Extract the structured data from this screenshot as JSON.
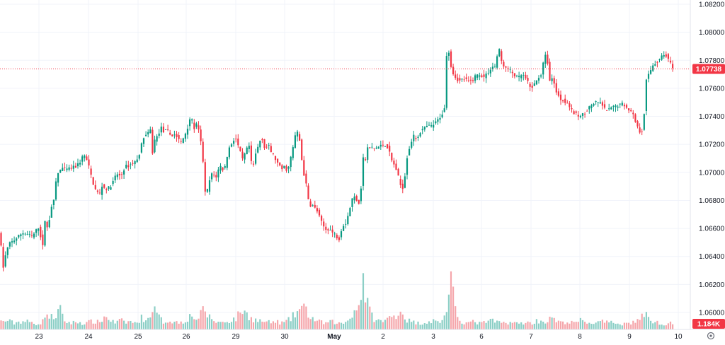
{
  "chart_data": {
    "type": "candlestick",
    "title": "",
    "price_axis": {
      "ylim": [
        1.0588,
        1.0822
      ],
      "tick_labels": [
        "1.08200",
        "1.08000",
        "1.07800",
        "1.07600",
        "1.07400",
        "1.07200",
        "1.07000",
        "1.06800",
        "1.06600",
        "1.06400",
        "1.06200",
        "1.06000"
      ],
      "tick_values": [
        1.082,
        1.08,
        1.078,
        1.076,
        1.074,
        1.072,
        1.07,
        1.068,
        1.066,
        1.064,
        1.062,
        1.06
      ]
    },
    "time_axis": {
      "tick_labels": [
        "23",
        "24",
        "25",
        "26",
        "29",
        "30",
        "May",
        "2",
        "3",
        "6",
        "7",
        "8",
        "9",
        "10"
      ],
      "bold_label": "May"
    },
    "current_price": {
      "value": 1.07738,
      "label": "1.07738",
      "color": "#f23645"
    },
    "volume_badge": {
      "label": "1.184K",
      "color": "#f23645"
    },
    "grid": true,
    "colors": {
      "up": "#089981",
      "down": "#f23645",
      "up_volume": "#8ccfc6",
      "down_volume": "#f5a6ab"
    },
    "series": [
      {
        "name": "price",
        "anchors": [
          [
            0,
            1.0658
          ],
          [
            3,
            1.0647
          ],
          [
            6,
            1.0632
          ],
          [
            9,
            1.064
          ],
          [
            14,
            1.0649
          ],
          [
            20,
            1.0651
          ],
          [
            27,
            1.0654
          ],
          [
            33,
            1.0657
          ],
          [
            40,
            1.0656
          ],
          [
            47,
            1.0654
          ],
          [
            52,
            1.0658
          ],
          [
            56,
            1.0661
          ],
          [
            60,
            1.0652
          ],
          [
            62,
            1.0647
          ],
          [
            65,
            1.0666
          ],
          [
            69,
            1.0659
          ],
          [
            74,
            1.0676
          ],
          [
            79,
            1.0681
          ],
          [
            81,
            1.0697
          ],
          [
            88,
            1.0703
          ],
          [
            95,
            1.0702
          ],
          [
            102,
            1.0703
          ],
          [
            108,
            1.0704
          ],
          [
            114,
            1.0707
          ],
          [
            120,
            1.0713
          ],
          [
            126,
            1.0706
          ],
          [
            132,
            1.0694
          ],
          [
            136,
            1.0688
          ],
          [
            142,
            1.0684
          ],
          [
            146,
            1.0691
          ],
          [
            150,
            1.0688
          ],
          [
            156,
            1.0689
          ],
          [
            161,
            1.0693
          ],
          [
            166,
            1.0699
          ],
          [
            172,
            1.0697
          ],
          [
            178,
            1.0704
          ],
          [
            184,
            1.0705
          ],
          [
            190,
            1.0707
          ],
          [
            196,
            1.0709
          ],
          [
            201,
            1.0719
          ],
          [
            205,
            1.0726
          ],
          [
            210,
            1.0727
          ],
          [
            215,
            1.0731
          ],
          [
            218,
            1.0705
          ],
          [
            220,
            1.0723
          ],
          [
            224,
            1.0726
          ],
          [
            229,
            1.0732
          ],
          [
            233,
            1.0729
          ],
          [
            238,
            1.073
          ],
          [
            243,
            1.0726
          ],
          [
            248,
            1.0727
          ],
          [
            252,
            1.0725
          ],
          [
            257,
            1.0721
          ],
          [
            262,
            1.0726
          ],
          [
            267,
            1.0733
          ],
          [
            271,
            1.0741
          ],
          [
            275,
            1.0731
          ],
          [
            280,
            1.0735
          ],
          [
            285,
            1.0722
          ],
          [
            289,
            1.0705
          ],
          [
            292,
            1.068
          ],
          [
            296,
            1.0692
          ],
          [
            301,
            1.0699
          ],
          [
            307,
            1.0697
          ],
          [
            312,
            1.0705
          ],
          [
            318,
            1.0701
          ],
          [
            324,
            1.0716
          ],
          [
            330,
            1.0722
          ],
          [
            334,
            1.0725
          ],
          [
            339,
            1.0717
          ],
          [
            344,
            1.0709
          ],
          [
            349,
            1.0715
          ],
          [
            353,
            1.072
          ],
          [
            358,
            1.0701
          ],
          [
            362,
            1.0712
          ],
          [
            367,
            1.072
          ],
          [
            371,
            1.0726
          ],
          [
            376,
            1.0716
          ],
          [
            380,
            1.072
          ],
          [
            384,
            1.0715
          ],
          [
            389,
            1.0711
          ],
          [
            394,
            1.0706
          ],
          [
            399,
            1.0702
          ],
          [
            403,
            1.0704
          ],
          [
            408,
            1.0701
          ],
          [
            412,
            1.071
          ],
          [
            416,
            1.0719
          ],
          [
            420,
            1.0731
          ],
          [
            425,
            1.0722
          ],
          [
            429,
            1.0703
          ],
          [
            434,
            1.0691
          ],
          [
            438,
            1.0677
          ],
          [
            444,
            1.0676
          ],
          [
            450,
            1.0672
          ],
          [
            455,
            1.0665
          ],
          [
            461,
            1.0659
          ],
          [
            466,
            1.066
          ],
          [
            471,
            1.0657
          ],
          [
            476,
            1.0655
          ],
          [
            480,
            1.0652
          ],
          [
            485,
            1.0662
          ],
          [
            490,
            1.0664
          ],
          [
            495,
            1.0673
          ],
          [
            500,
            1.0683
          ],
          [
            505,
            1.0681
          ],
          [
            510,
            1.0677
          ],
          [
            514,
            1.0711
          ],
          [
            517,
            1.0707
          ],
          [
            520,
            1.0717
          ],
          [
            525,
            1.0718
          ],
          [
            530,
            1.0717
          ],
          [
            535,
            1.0718
          ],
          [
            540,
            1.0719
          ],
          [
            545,
            1.072
          ],
          [
            550,
            1.0717
          ],
          [
            555,
            1.0708
          ],
          [
            560,
            1.0704
          ],
          [
            565,
            1.0695
          ],
          [
            569,
            1.0688
          ],
          [
            572,
            1.0691
          ],
          [
            576,
            1.071
          ],
          [
            580,
            1.0718
          ],
          [
            585,
            1.0726
          ],
          [
            590,
            1.0724
          ],
          [
            595,
            1.0729
          ],
          [
            600,
            1.0731
          ],
          [
            605,
            1.0733
          ],
          [
            611,
            1.0733
          ],
          [
            616,
            1.0735
          ],
          [
            621,
            1.0738
          ],
          [
            626,
            1.0742
          ],
          [
            630,
            1.0746
          ],
          [
            633,
            1.0795
          ],
          [
            636,
            1.0784
          ],
          [
            640,
            1.0772
          ],
          [
            645,
            1.0768
          ],
          [
            650,
            1.0765
          ],
          [
            656,
            1.0767
          ],
          [
            662,
            1.0765
          ],
          [
            668,
            1.0765
          ],
          [
            673,
            1.0769
          ],
          [
            679,
            1.077
          ],
          [
            685,
            1.0768
          ],
          [
            690,
            1.0771
          ],
          [
            696,
            1.0775
          ],
          [
            701,
            1.0776
          ],
          [
            706,
            1.0789
          ],
          [
            710,
            1.0779
          ],
          [
            716,
            1.0774
          ],
          [
            722,
            1.0773
          ],
          [
            727,
            1.077
          ],
          [
            733,
            1.0767
          ],
          [
            739,
            1.077
          ],
          [
            745,
            1.0766
          ],
          [
            751,
            1.076
          ],
          [
            757,
            1.0763
          ],
          [
            762,
            1.0768
          ],
          [
            766,
            1.077
          ],
          [
            770,
            1.0781
          ],
          [
            774,
            1.0785
          ],
          [
            777,
            1.0765
          ],
          [
            783,
            1.0767
          ],
          [
            788,
            1.0756
          ],
          [
            794,
            1.0752
          ],
          [
            799,
            1.0751
          ],
          [
            804,
            1.0749
          ],
          [
            810,
            1.0743
          ],
          [
            816,
            1.0741
          ],
          [
            822,
            1.074
          ],
          [
            828,
            1.0743
          ],
          [
            833,
            1.0746
          ],
          [
            839,
            1.0749
          ],
          [
            845,
            1.075
          ],
          [
            851,
            1.0749
          ],
          [
            857,
            1.0744
          ],
          [
            863,
            1.0745
          ],
          [
            869,
            1.0747
          ],
          [
            874,
            1.0748
          ],
          [
            880,
            1.0749
          ],
          [
            886,
            1.0747
          ],
          [
            892,
            1.0744
          ],
          [
            897,
            1.074
          ],
          [
            902,
            1.0732
          ],
          [
            907,
            1.0728
          ],
          [
            910,
            1.0732
          ],
          [
            912,
            1.0748
          ],
          [
            914,
            1.0765
          ],
          [
            918,
            1.077
          ],
          [
            924,
            1.0777
          ],
          [
            930,
            1.0779
          ],
          [
            936,
            1.0783
          ],
          [
            942,
            1.0784
          ],
          [
            947,
            1.0779
          ],
          [
            952,
            1.0774
          ]
        ]
      },
      {
        "name": "volume",
        "anchors": [
          [
            0,
            12
          ],
          [
            10,
            14
          ],
          [
            20,
            10
          ],
          [
            30,
            13
          ],
          [
            40,
            12
          ],
          [
            50,
            9
          ],
          [
            60,
            11
          ],
          [
            64,
            28
          ],
          [
            70,
            18
          ],
          [
            80,
            22
          ],
          [
            84,
            34
          ],
          [
            90,
            14
          ],
          [
            100,
            10
          ],
          [
            110,
            12
          ],
          [
            120,
            9
          ],
          [
            130,
            13
          ],
          [
            140,
            11
          ],
          [
            148,
            20
          ],
          [
            155,
            16
          ],
          [
            162,
            10
          ],
          [
            170,
            14
          ],
          [
            178,
            11
          ],
          [
            185,
            13
          ],
          [
            190,
            9
          ],
          [
            200,
            18
          ],
          [
            210,
            15
          ],
          [
            214,
            36
          ],
          [
            220,
            26
          ],
          [
            230,
            12
          ],
          [
            240,
            14
          ],
          [
            250,
            11
          ],
          [
            260,
            13
          ],
          [
            270,
            22
          ],
          [
            280,
            16
          ],
          [
            288,
            32
          ],
          [
            295,
            20
          ],
          [
            305,
            12
          ],
          [
            315,
            11
          ],
          [
            325,
            14
          ],
          [
            335,
            18
          ],
          [
            340,
            32
          ],
          [
            350,
            22
          ],
          [
            360,
            15
          ],
          [
            370,
            13
          ],
          [
            380,
            11
          ],
          [
            390,
            12
          ],
          [
            400,
            10
          ],
          [
            410,
            16
          ],
          [
            420,
            28
          ],
          [
            426,
            34
          ],
          [
            432,
            30
          ],
          [
            440,
            18
          ],
          [
            450,
            12
          ],
          [
            460,
            10
          ],
          [
            470,
            12
          ],
          [
            480,
            9
          ],
          [
            490,
            12
          ],
          [
            496,
            24
          ],
          [
            502,
            30
          ],
          [
            508,
            40
          ],
          [
            512,
            86
          ],
          [
            516,
            56
          ],
          [
            522,
            28
          ],
          [
            530,
            15
          ],
          [
            540,
            12
          ],
          [
            550,
            18
          ],
          [
            560,
            24
          ],
          [
            566,
            30
          ],
          [
            572,
            18
          ],
          [
            580,
            12
          ],
          [
            590,
            10
          ],
          [
            600,
            11
          ],
          [
            610,
            14
          ],
          [
            620,
            11
          ],
          [
            628,
            20
          ],
          [
            634,
            52
          ],
          [
            638,
            76
          ],
          [
            642,
            30
          ],
          [
            650,
            14
          ],
          [
            660,
            10
          ],
          [
            670,
            12
          ],
          [
            680,
            9
          ],
          [
            690,
            14
          ],
          [
            700,
            12
          ],
          [
            710,
            10
          ],
          [
            720,
            12
          ],
          [
            730,
            9
          ],
          [
            740,
            11
          ],
          [
            750,
            10
          ],
          [
            760,
            14
          ],
          [
            770,
            12
          ],
          [
            780,
            18
          ],
          [
            790,
            10
          ],
          [
            800,
            12
          ],
          [
            810,
            10
          ],
          [
            820,
            14
          ],
          [
            830,
            11
          ],
          [
            840,
            10
          ],
          [
            850,
            12
          ],
          [
            860,
            10
          ],
          [
            870,
            11
          ],
          [
            880,
            9
          ],
          [
            890,
            10
          ],
          [
            900,
            14
          ],
          [
            910,
            24
          ],
          [
            916,
            18
          ],
          [
            924,
            12
          ],
          [
            934,
            9
          ],
          [
            944,
            10
          ],
          [
            952,
            12
          ]
        ]
      }
    ]
  }
}
